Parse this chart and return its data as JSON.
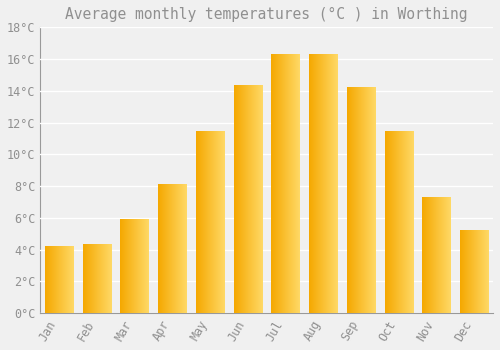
{
  "title": "Average monthly temperatures (°C ) in Worthing",
  "months": [
    "Jan",
    "Feb",
    "Mar",
    "Apr",
    "May",
    "Jun",
    "Jul",
    "Aug",
    "Sep",
    "Oct",
    "Nov",
    "Dec"
  ],
  "values": [
    4.2,
    4.3,
    5.9,
    8.1,
    11.4,
    14.3,
    16.3,
    16.3,
    14.2,
    11.4,
    7.3,
    5.2
  ],
  "bar_color_left": "#F5A800",
  "bar_color_right": "#FFD966",
  "background_color": "#F0F0F0",
  "grid_color": "#FFFFFF",
  "text_color": "#909090",
  "ylim": [
    0,
    18
  ],
  "yticks": [
    0,
    2,
    4,
    6,
    8,
    10,
    12,
    14,
    16,
    18
  ],
  "title_fontsize": 10.5,
  "tick_fontsize": 8.5,
  "bar_width": 0.75
}
